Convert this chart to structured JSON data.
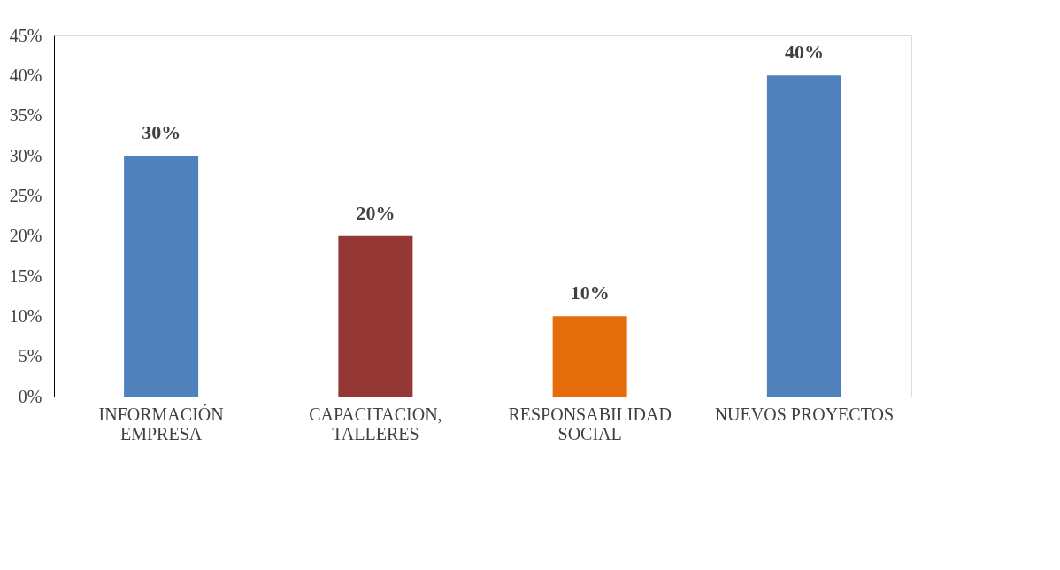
{
  "chart_data": {
    "type": "bar",
    "categories": [
      "INFORMACIÓN\nEMPRESA",
      "CAPACITACION,\nTALLERES",
      "RESPONSABILIDAD\nSOCIAL",
      "NUEVOS PROYECTOS"
    ],
    "values": [
      30,
      20,
      10,
      40
    ],
    "colors": [
      "#4f81bd",
      "#953735",
      "#e46c0a",
      "#4f81bd"
    ],
    "value_labels": [
      "30%",
      "20%",
      "10%",
      "40%"
    ],
    "ylim": [
      0,
      45
    ],
    "yticks": [
      {
        "value": 0,
        "label": "0%"
      },
      {
        "value": 5,
        "label": "5%"
      },
      {
        "value": 10,
        "label": "10%"
      },
      {
        "value": 15,
        "label": "15%"
      },
      {
        "value": 20,
        "label": "20%"
      },
      {
        "value": 25,
        "label": "25%"
      },
      {
        "value": 30,
        "label": "30%"
      },
      {
        "value": 35,
        "label": "35%"
      },
      {
        "value": 40,
        "label": "40%"
      },
      {
        "value": 45,
        "label": "45%"
      }
    ],
    "grid": false
  }
}
